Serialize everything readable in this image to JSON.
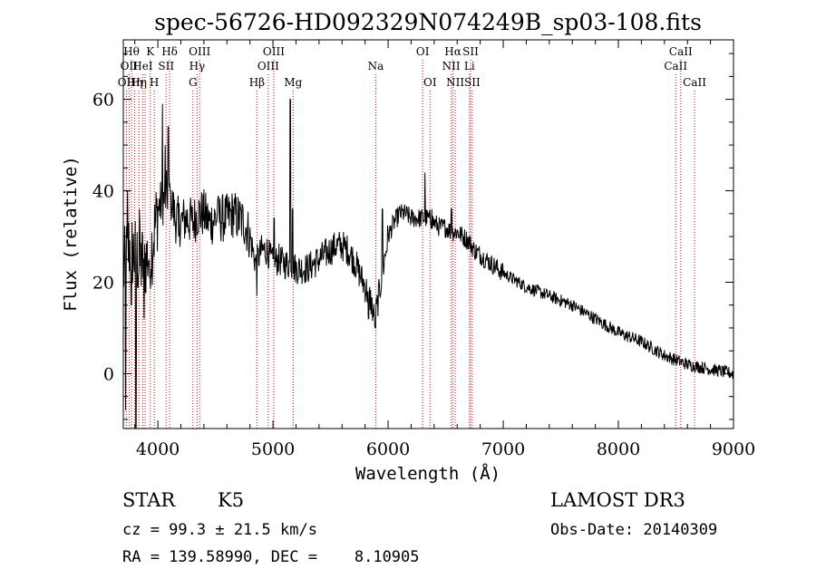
{
  "chart_data": {
    "type": "line",
    "title": "spec-56726-HD092329N074249B_sp03-108.fits",
    "xlabel": "Wavelength (Å)",
    "ylabel": "Flux (relative)",
    "xlim": [
      3700,
      9000
    ],
    "ylim": [
      -12,
      73
    ],
    "xticks": [
      4000,
      5000,
      6000,
      7000,
      8000,
      9000
    ],
    "yticks": [
      0,
      20,
      40,
      60
    ],
    "grid": false,
    "line_color": "#000000",
    "marker_color": "#cc0000",
    "continuum": [
      [
        3700,
        22
      ],
      [
        3750,
        28
      ],
      [
        3800,
        26
      ],
      [
        3850,
        24
      ],
      [
        3900,
        25
      ],
      [
        3950,
        28
      ],
      [
        4000,
        36
      ],
      [
        4050,
        38
      ],
      [
        4100,
        40
      ],
      [
        4150,
        34
      ],
      [
        4200,
        33
      ],
      [
        4250,
        34
      ],
      [
        4300,
        33
      ],
      [
        4350,
        35
      ],
      [
        4400,
        35
      ],
      [
        4450,
        33
      ],
      [
        4500,
        34
      ],
      [
        4550,
        34
      ],
      [
        4600,
        34
      ],
      [
        4650,
        35
      ],
      [
        4700,
        34
      ],
      [
        4750,
        33
      ],
      [
        4800,
        30
      ],
      [
        4850,
        24
      ],
      [
        4900,
        27
      ],
      [
        4950,
        27
      ],
      [
        5000,
        24
      ],
      [
        5050,
        25
      ],
      [
        5100,
        24
      ],
      [
        5150,
        24
      ],
      [
        5200,
        23
      ],
      [
        5250,
        23
      ],
      [
        5300,
        23
      ],
      [
        5350,
        24
      ],
      [
        5400,
        25
      ],
      [
        5450,
        26
      ],
      [
        5500,
        27
      ],
      [
        5550,
        28
      ],
      [
        5600,
        28
      ],
      [
        5650,
        27
      ],
      [
        5700,
        25
      ],
      [
        5750,
        22
      ],
      [
        5800,
        19
      ],
      [
        5850,
        16
      ],
      [
        5880,
        12
      ],
      [
        5900,
        14
      ],
      [
        5950,
        22
      ],
      [
        6000,
        30
      ],
      [
        6050,
        33
      ],
      [
        6100,
        35
      ],
      [
        6150,
        35
      ],
      [
        6200,
        34
      ],
      [
        6250,
        34
      ],
      [
        6300,
        34
      ],
      [
        6350,
        34
      ],
      [
        6400,
        33
      ],
      [
        6450,
        32
      ],
      [
        6500,
        32
      ],
      [
        6550,
        31
      ],
      [
        6600,
        31
      ],
      [
        6650,
        30
      ],
      [
        6700,
        29
      ],
      [
        6750,
        27
      ],
      [
        6800,
        26
      ],
      [
        6850,
        25
      ],
      [
        6900,
        24
      ],
      [
        7000,
        22
      ],
      [
        7100,
        20.5
      ],
      [
        7200,
        19
      ],
      [
        7300,
        18
      ],
      [
        7400,
        17
      ],
      [
        7500,
        16
      ],
      [
        7600,
        15
      ],
      [
        7700,
        13.5
      ],
      [
        7800,
        12
      ],
      [
        7900,
        10.5
      ],
      [
        8000,
        9
      ],
      [
        8100,
        8
      ],
      [
        8200,
        7
      ],
      [
        8300,
        5.5
      ],
      [
        8400,
        4
      ],
      [
        8500,
        3
      ],
      [
        8600,
        2
      ],
      [
        8700,
        1.5
      ],
      [
        8800,
        1
      ],
      [
        8900,
        0.5
      ],
      [
        9000,
        0
      ]
    ],
    "spikes": [
      [
        3720,
        -8
      ],
      [
        3735,
        40
      ],
      [
        3770,
        15
      ],
      [
        3810,
        -13
      ],
      [
        3840,
        36
      ],
      [
        3880,
        12
      ],
      [
        3930,
        21
      ],
      [
        4040,
        59
      ],
      [
        4065,
        50
      ],
      [
        4090,
        54
      ],
      [
        4110,
        40
      ],
      [
        4180,
        30
      ],
      [
        4280,
        36
      ],
      [
        4520,
        38
      ],
      [
        4860,
        17
      ],
      [
        5010,
        34
      ],
      [
        5150,
        60
      ],
      [
        5170,
        36
      ],
      [
        5830,
        12
      ],
      [
        5890,
        10
      ],
      [
        5950,
        36
      ],
      [
        6320,
        44
      ],
      [
        6380,
        36
      ],
      [
        6550,
        36
      ],
      [
        9000,
        -1
      ]
    ],
    "lines": [
      {
        "wl": 3727,
        "label": "OII",
        "row": 3
      },
      {
        "wl": 3750,
        "label": "OII",
        "row": 2
      },
      {
        "wl": 3771,
        "label": "Hθ",
        "row": 1
      },
      {
        "wl": 3798,
        "label": "Hη",
        "row": 3
      },
      {
        "wl": 3835,
        "label": "Hη",
        "row": 3
      },
      {
        "wl": 3869,
        "label": "HeI",
        "row": 2
      },
      {
        "wl": 3889,
        "label": "",
        "row": 2
      },
      {
        "wl": 3934,
        "label": "K",
        "row": 1
      },
      {
        "wl": 3969,
        "label": "H",
        "row": 3
      },
      {
        "wl": 4072,
        "label": "SII",
        "row": 2
      },
      {
        "wl": 4102,
        "label": "Hδ",
        "row": 1
      },
      {
        "wl": 4305,
        "label": "G",
        "row": 3
      },
      {
        "wl": 4341,
        "label": "Hγ",
        "row": 2
      },
      {
        "wl": 4363,
        "label": "OIII",
        "row": 1
      },
      {
        "wl": 4861,
        "label": "Hβ",
        "row": 3
      },
      {
        "wl": 4959,
        "label": "OIII",
        "row": 2
      },
      {
        "wl": 5007,
        "label": "OIII",
        "row": 1
      },
      {
        "wl": 5175,
        "label": "Mg",
        "row": 3
      },
      {
        "wl": 5893,
        "label": "Na",
        "row": 2
      },
      {
        "wl": 6300,
        "label": "OI",
        "row": 1
      },
      {
        "wl": 6364,
        "label": "OI",
        "row": 3
      },
      {
        "wl": 6548,
        "label": "NII",
        "row": 2
      },
      {
        "wl": 6563,
        "label": "Hα",
        "row": 1
      },
      {
        "wl": 6583,
        "label": "NII",
        "row": 3
      },
      {
        "wl": 6707,
        "label": "Li",
        "row": 2
      },
      {
        "wl": 6716,
        "label": "SII",
        "row": 1
      },
      {
        "wl": 6731,
        "label": "SII",
        "row": 3
      },
      {
        "wl": 8498,
        "label": "CaII",
        "row": 2
      },
      {
        "wl": 8542,
        "label": "CaII",
        "row": 1
      },
      {
        "wl": 8662,
        "label": "CaII",
        "row": 3
      }
    ]
  },
  "info": {
    "class": "STAR",
    "subclass": "K5",
    "survey": "LAMOST DR3",
    "redshift": "cz = 99.3 ± 21.5 km/s",
    "obs_date": "Obs-Date: 20140309",
    "coords": "RA = 139.58990, DEC =    8.10905"
  }
}
